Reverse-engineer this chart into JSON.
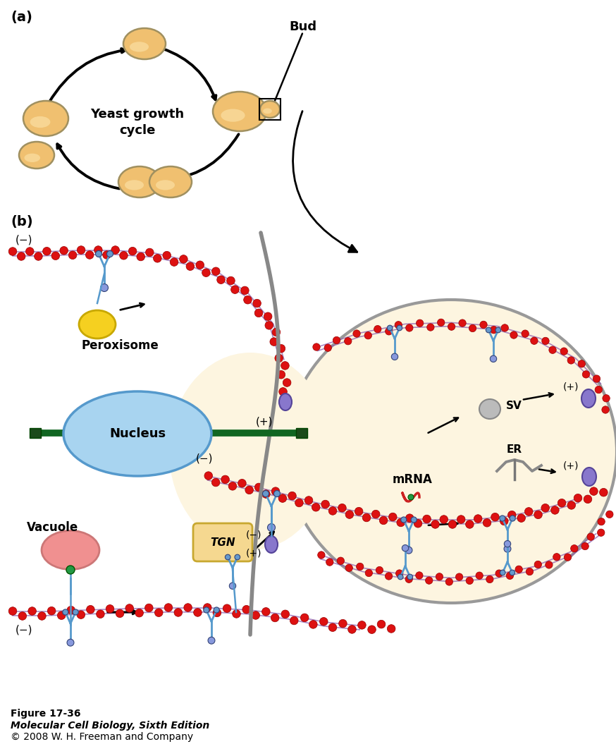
{
  "bg_color": "#ffffff",
  "cell_bg": "#fdf5e0",
  "cell_edge": "#999999",
  "actin_red": "#dd1111",
  "actin_edge": "#990000",
  "actin_spine": "#8855aa",
  "nucleus_face": "#a8d4f0",
  "nucleus_edge": "#5599cc",
  "peroxisome_face": "#f5d020",
  "peroxisome_edge": "#c8a800",
  "vacuole_face": "#f09090",
  "vacuole_edge": "#cc7777",
  "tgn_face": "#f5d890",
  "tgn_edge": "#c8a830",
  "vesicle_face": "#8877cc",
  "vesicle_edge": "#554499",
  "sv_face": "#bbbbbb",
  "sv_edge": "#888888",
  "myosin_color": "#5599cc",
  "green_bar": "#116622",
  "green_cap": "#228833",
  "green_dot": "#229944",
  "yeast_face": "#f0c070",
  "yeast_edge": "#a09060",
  "yeast_hi": "#fde8b0",
  "mrna_color": "#cc2222",
  "fig_caption": "Figure 17-36",
  "fig_caption2": "Molecular Cell Biology, Sixth Edition",
  "fig_caption3": "© 2008 W. H. Freeman and Company"
}
